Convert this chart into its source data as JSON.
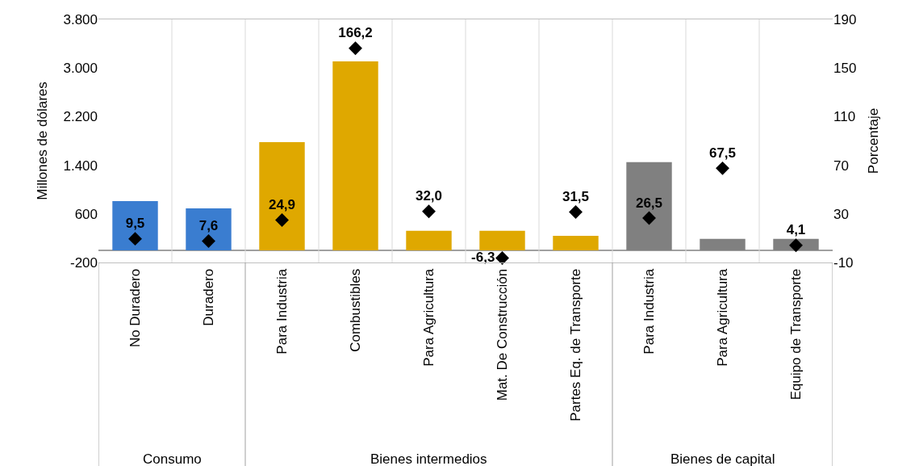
{
  "chart_data": {
    "type": "bar",
    "ylabel": "Millones de dólares",
    "y2label": "Porcentaje",
    "categories": [
      "No Duradero",
      "Duradero",
      "Para Industria",
      "Combustibles",
      "Para Agricultura",
      "Mat. De Construcción",
      "Partes Eq. de Transporte",
      "Para Industria",
      "Para Agricultura",
      "Equipo de Transporte"
    ],
    "series": [
      {
        "values": [
          810,
          690,
          1780,
          3110,
          320,
          320,
          240,
          1450,
          190,
          190
        ],
        "colors": [
          "#3a7dd0",
          "#3a7dd0",
          "#dfa800",
          "#dfa800",
          "#dfa800",
          "#dfa800",
          "#dfa800",
          "#808080",
          "#808080",
          "#808080"
        ]
      },
      {
        "type": "scatter",
        "axis": "y2",
        "color": "#000000",
        "marker": "diamond",
        "values": [
          9.5,
          7.6,
          24.9,
          166.2,
          32.0,
          -6.3,
          31.5,
          26.5,
          67.5,
          4.1
        ],
        "value_labels": [
          "9,5",
          "7,6",
          "24,9",
          "166,2",
          "32,0",
          "-6,3",
          "31,5",
          "26,5",
          "67,5",
          "4,1"
        ]
      }
    ],
    "ylim": [
      -200,
      3800
    ],
    "yticks": [
      {
        "value": -200,
        "label": "-200"
      },
      600,
      {
        "value": 1400,
        "label": "1.400"
      },
      {
        "value": 2200,
        "label": "2.200"
      },
      {
        "value": 3000,
        "label": "3.000"
      },
      {
        "value": 3800,
        "label": "3.800"
      }
    ],
    "y2lim": [
      -10,
      190
    ],
    "y2ticks": [
      -10,
      30,
      70,
      110,
      150,
      190
    ],
    "annotations": [
      "Consumo",
      "Bienes intermedios",
      "Bienes de capital"
    ],
    "grid": "x"
  }
}
